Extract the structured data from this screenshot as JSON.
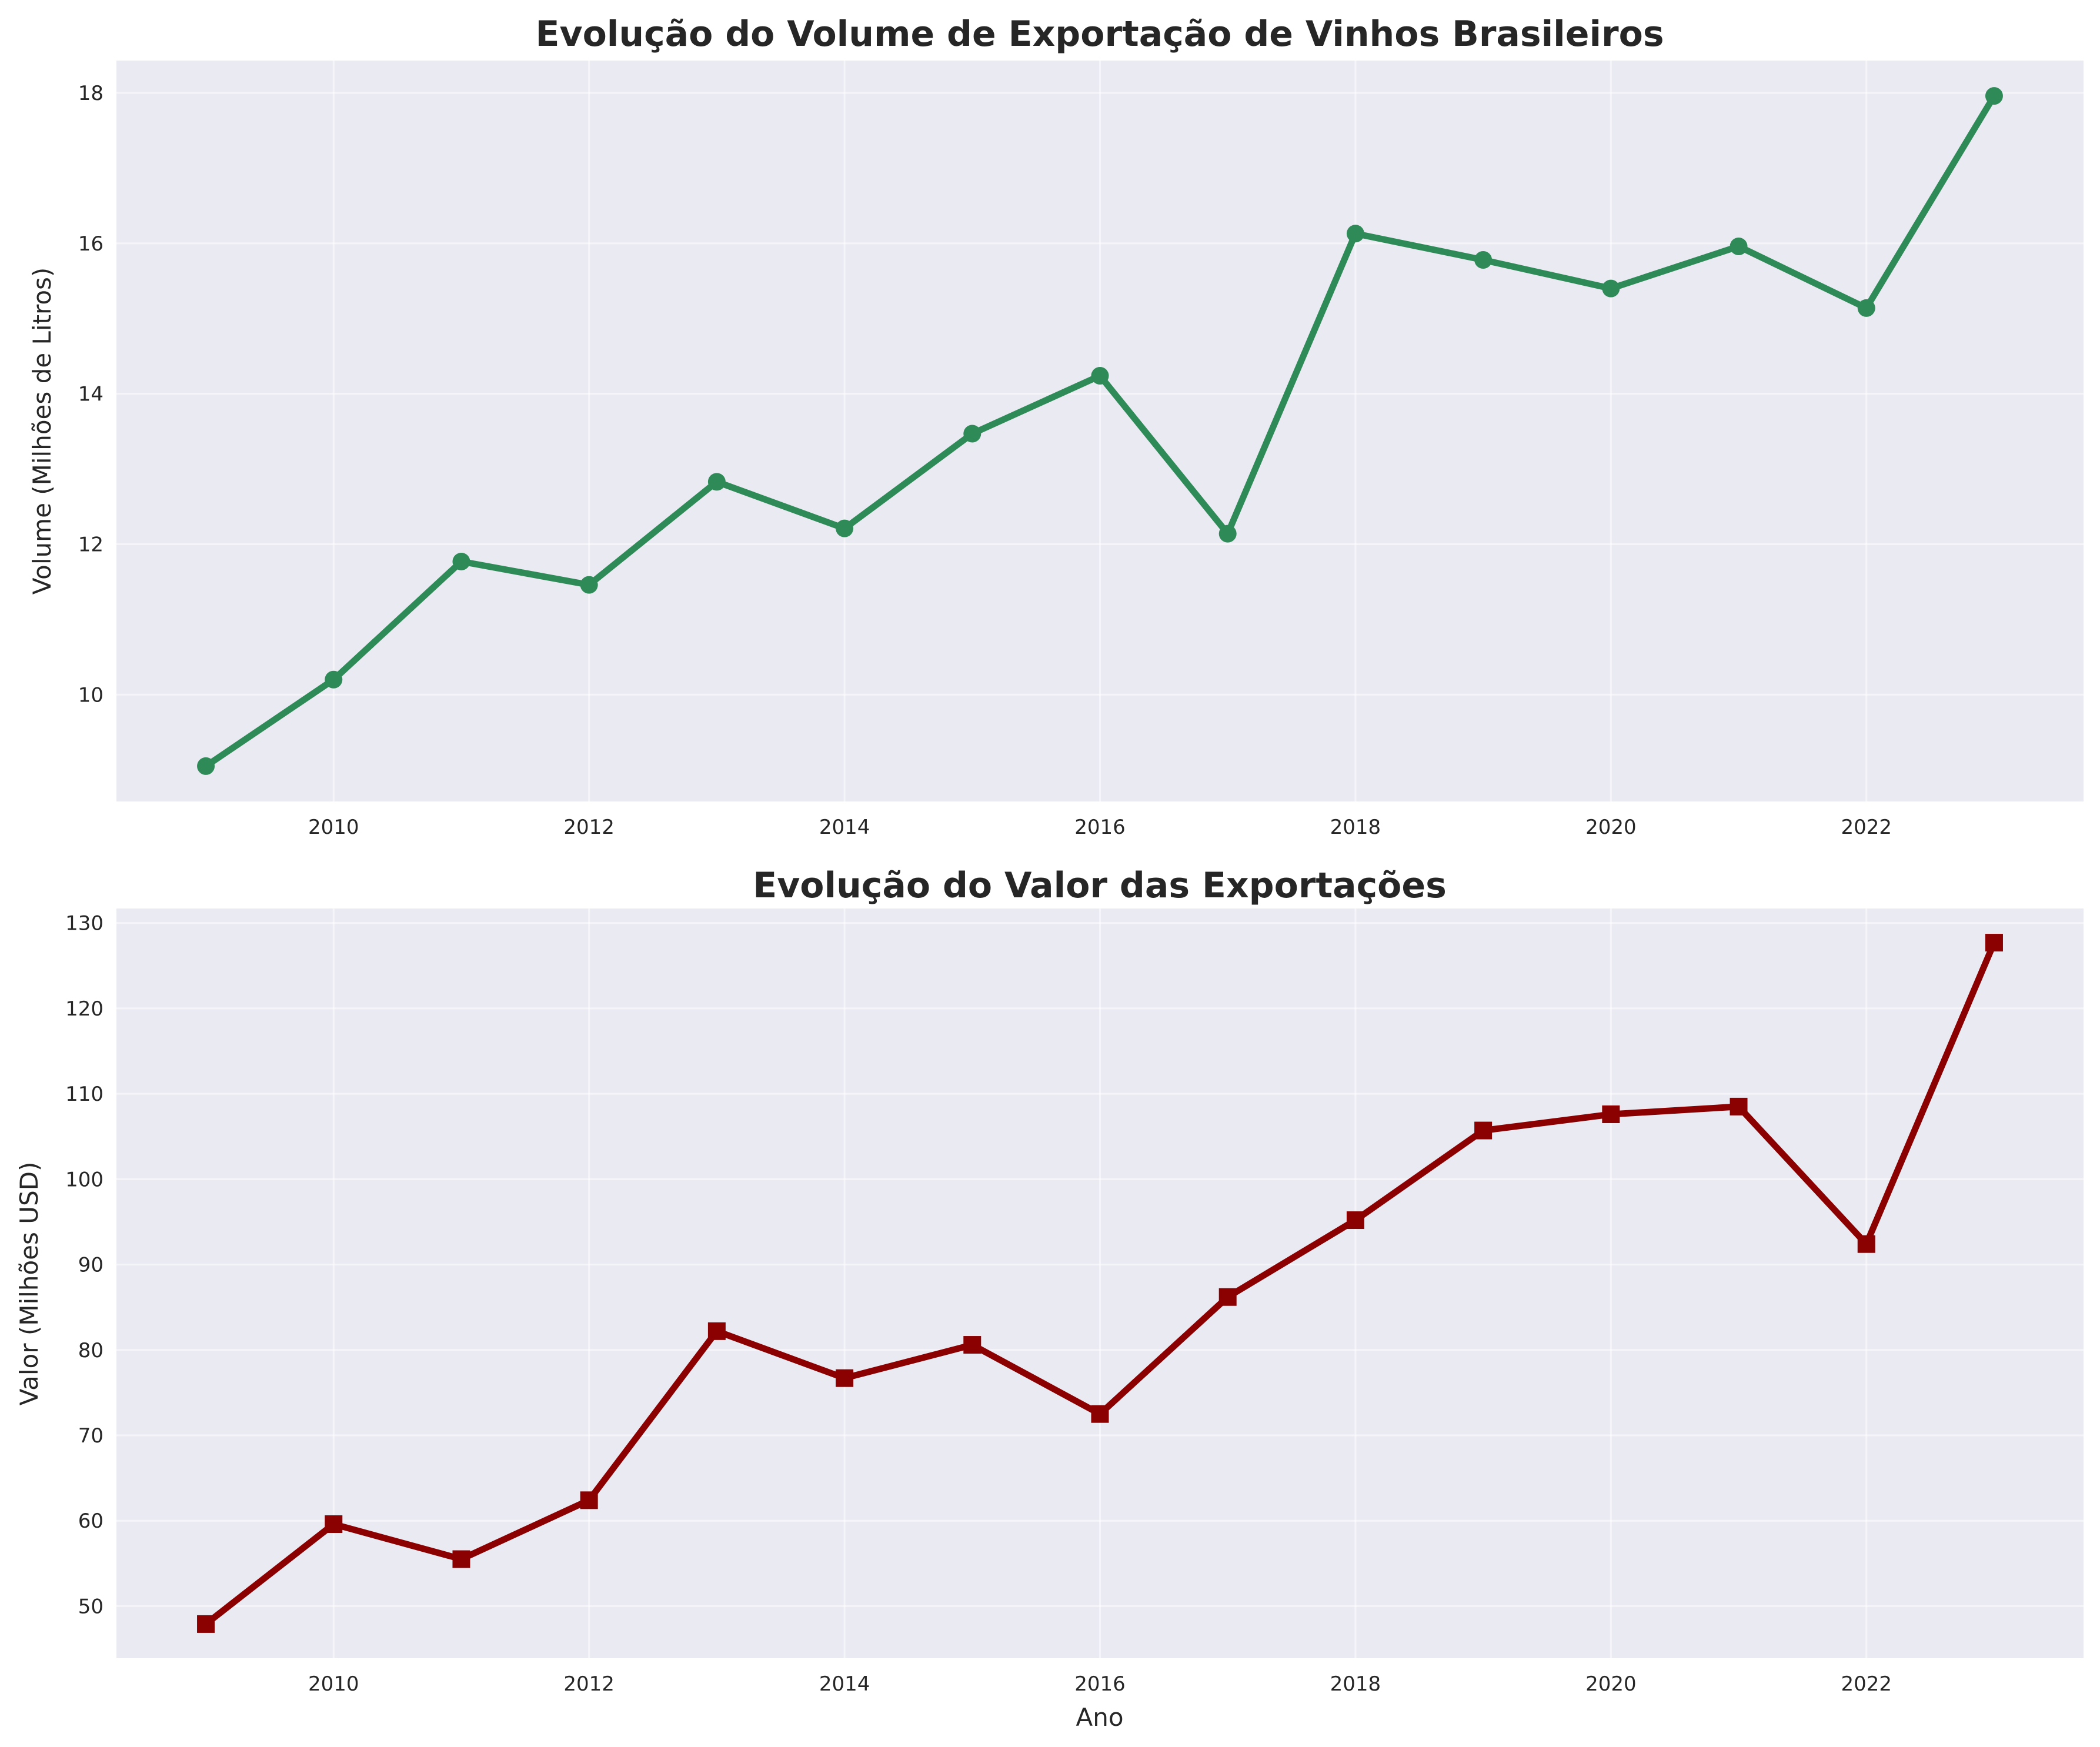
{
  "chart_data": [
    {
      "type": "line",
      "title": "Evolução do Volume de Exportação de Vinhos Brasileiros",
      "xlabel": "",
      "ylabel": "Volume (Milhões de Litros)",
      "x": [
        2009,
        2010,
        2011,
        2012,
        2013,
        2014,
        2015,
        2016,
        2017,
        2018,
        2019,
        2020,
        2021,
        2022,
        2023
      ],
      "values": [
        9.05,
        10.2,
        11.77,
        11.46,
        12.83,
        12.21,
        13.47,
        14.24,
        12.14,
        16.13,
        15.78,
        15.4,
        15.96,
        15.14,
        17.96
      ],
      "xlim": [
        2008.3,
        2023.7
      ],
      "ylim": [
        8.58,
        18.43
      ],
      "xticks": [
        2010,
        2012,
        2014,
        2016,
        2018,
        2020,
        2022
      ],
      "yticks": [
        10,
        12,
        14,
        16,
        18
      ],
      "color": "#2e8b57",
      "marker": "circle",
      "grid": true
    },
    {
      "type": "line",
      "title": "Evolução do Valor das Exportações",
      "xlabel": "Ano",
      "ylabel": "Valor (Milhões USD)",
      "x": [
        2009,
        2010,
        2011,
        2012,
        2013,
        2014,
        2015,
        2016,
        2017,
        2018,
        2019,
        2020,
        2021,
        2022,
        2023
      ],
      "values": [
        47.9,
        59.6,
        55.5,
        62.4,
        82.2,
        76.7,
        80.6,
        72.5,
        86.2,
        95.2,
        105.7,
        107.6,
        108.5,
        92.4,
        127.7
      ],
      "xlim": [
        2008.3,
        2023.7
      ],
      "ylim": [
        43.9,
        131.7
      ],
      "xticks": [
        2010,
        2012,
        2014,
        2016,
        2018,
        2020,
        2022
      ],
      "yticks": [
        50,
        60,
        70,
        80,
        90,
        100,
        110,
        120,
        130
      ],
      "color": "#8b0000",
      "marker": "square",
      "grid": true
    }
  ]
}
